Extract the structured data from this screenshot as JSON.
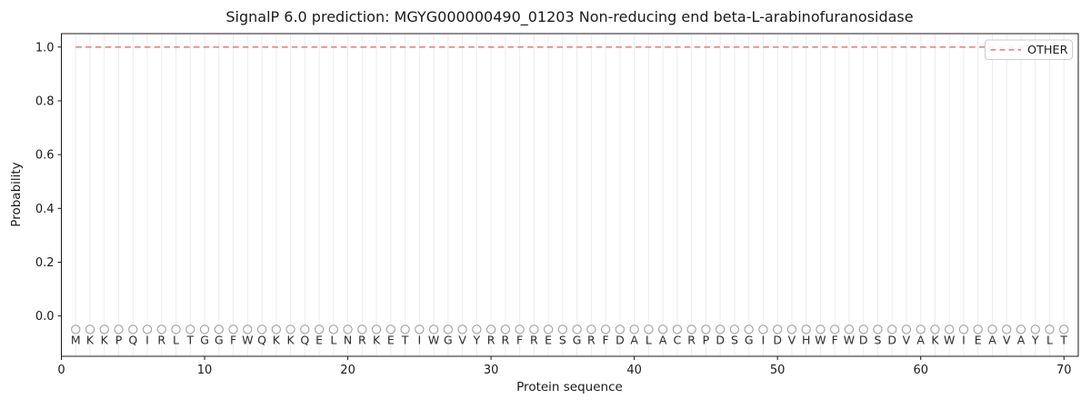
{
  "chart_data": {
    "type": "line",
    "title": "SignalP 6.0 prediction: MGYG000000490_01203 Non-reducing end beta-L-arabinofuranosidase",
    "xlabel": "Protein sequence",
    "ylabel": "Probability",
    "xlim": [
      0,
      71
    ],
    "ylim": [
      -0.15,
      1.05
    ],
    "xticks": [
      0,
      10,
      20,
      30,
      40,
      50,
      60,
      70
    ],
    "ytick_labels": [
      "0.0",
      "0.2",
      "0.4",
      "0.6",
      "0.8",
      "1.0"
    ],
    "sequence": "MKKPQIRLTGGFWQKKQELNRKETIWGVYRRFRESGRFDALACRPDSGIDVHWFWDSDVAKWIEAVAYLT",
    "series": [
      {
        "name": "OTHER",
        "linestyle": "dashed",
        "color": "#f08080",
        "y_value": 1.0,
        "x_start": 1,
        "x_end": 70
      }
    ],
    "residue_markers": {
      "shape": "open-circle",
      "edge_color": "#9e9e9e",
      "y_value": -0.05
    },
    "residue_letters": {
      "color": "#2b2b2b",
      "y_value": -0.09
    },
    "legend": {
      "location": "upper right",
      "entries": [
        {
          "label": "OTHER",
          "color": "#f08080",
          "linestyle": "dashed"
        }
      ]
    },
    "grid": {
      "vertical_per_residue": true,
      "color": "#ececec"
    }
  },
  "styles": {
    "spine_color": "#1a1a1a",
    "tick_text_color": "#1a1a1a",
    "background": "#ffffff",
    "legend_border": "#cccccc"
  }
}
